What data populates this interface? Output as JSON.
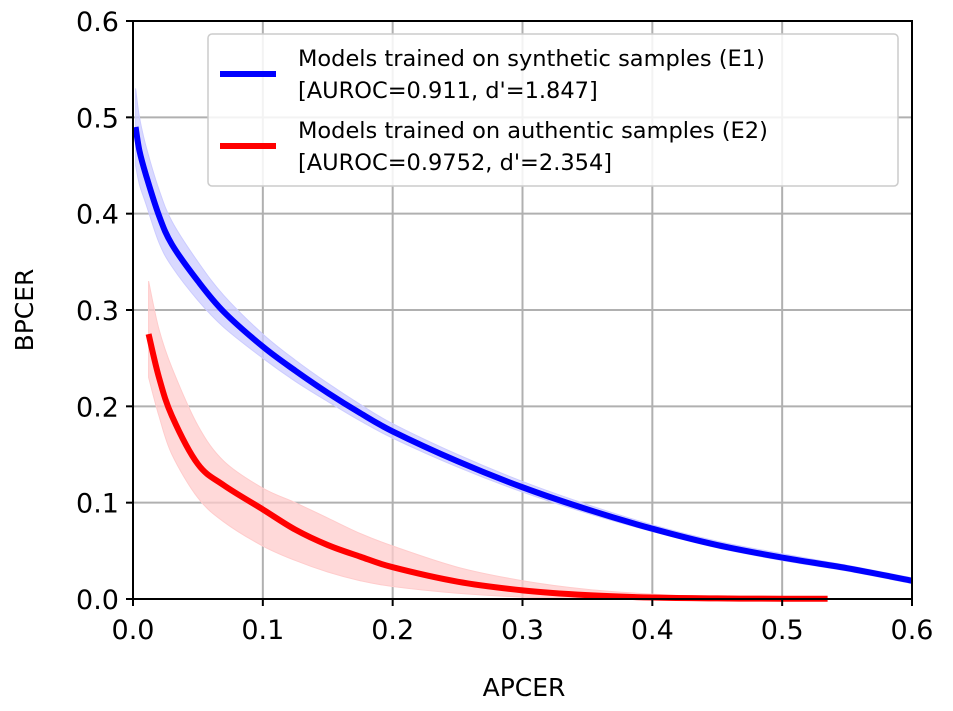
{
  "chart_data": {
    "type": "line",
    "title": "",
    "xlabel": "APCER",
    "ylabel": "BPCER",
    "xlim": [
      0.0,
      0.6
    ],
    "ylim": [
      0.0,
      0.6
    ],
    "grid": true,
    "legend_position": "top-right",
    "x_ticks": [
      "0.0",
      "0.1",
      "0.2",
      "0.3",
      "0.4",
      "0.5",
      "0.6"
    ],
    "y_ticks": [
      "0.0",
      "0.1",
      "0.2",
      "0.3",
      "0.4",
      "0.5",
      "0.6"
    ],
    "series": [
      {
        "name": "Models trained on synthetic samples (E1)",
        "legend_line2": "[AUROC=0.911, d'=1.847]",
        "color": "#0000ff",
        "band_color": "#ccccff",
        "x": [
          0.002,
          0.005,
          0.01,
          0.02,
          0.03,
          0.05,
          0.07,
          0.1,
          0.125,
          0.15,
          0.175,
          0.2,
          0.25,
          0.3,
          0.35,
          0.4,
          0.45,
          0.5,
          0.55,
          0.6
        ],
        "y": [
          0.49,
          0.465,
          0.44,
          0.398,
          0.368,
          0.33,
          0.298,
          0.262,
          0.237,
          0.214,
          0.193,
          0.174,
          0.143,
          0.116,
          0.093,
          0.073,
          0.056,
          0.043,
          0.032,
          0.019
        ],
        "lower": [
          0.45,
          0.43,
          0.41,
          0.37,
          0.345,
          0.31,
          0.282,
          0.25,
          0.226,
          0.205,
          0.185,
          0.167,
          0.137,
          0.111,
          0.089,
          0.07,
          0.053,
          0.04,
          0.029,
          0.016
        ],
        "upper": [
          0.53,
          0.5,
          0.47,
          0.425,
          0.392,
          0.35,
          0.315,
          0.275,
          0.248,
          0.224,
          0.202,
          0.182,
          0.15,
          0.122,
          0.098,
          0.077,
          0.06,
          0.047,
          0.035,
          0.022
        ]
      },
      {
        "name": "Models trained on authentic samples (E2)",
        "legend_line2": "[AUROC=0.9752, d'=2.354]",
        "color": "#ff0000",
        "band_color": "#ffcccc",
        "x": [
          0.012,
          0.02,
          0.03,
          0.05,
          0.07,
          0.1,
          0.125,
          0.15,
          0.175,
          0.2,
          0.25,
          0.3,
          0.35,
          0.4,
          0.45,
          0.5,
          0.535
        ],
        "y": [
          0.275,
          0.23,
          0.19,
          0.14,
          0.118,
          0.093,
          0.072,
          0.056,
          0.044,
          0.033,
          0.018,
          0.009,
          0.004,
          0.0015,
          0.0006,
          0.0003,
          0.0002
        ],
        "lower": [
          0.23,
          0.19,
          0.15,
          0.105,
          0.08,
          0.055,
          0.04,
          0.028,
          0.019,
          0.013,
          0.006,
          0.002,
          0.0005,
          0.0,
          0.0,
          0.0,
          0.0
        ],
        "upper": [
          0.33,
          0.28,
          0.24,
          0.18,
          0.143,
          0.115,
          0.1,
          0.084,
          0.068,
          0.055,
          0.033,
          0.019,
          0.01,
          0.005,
          0.002,
          0.001,
          0.0006
        ]
      }
    ]
  }
}
